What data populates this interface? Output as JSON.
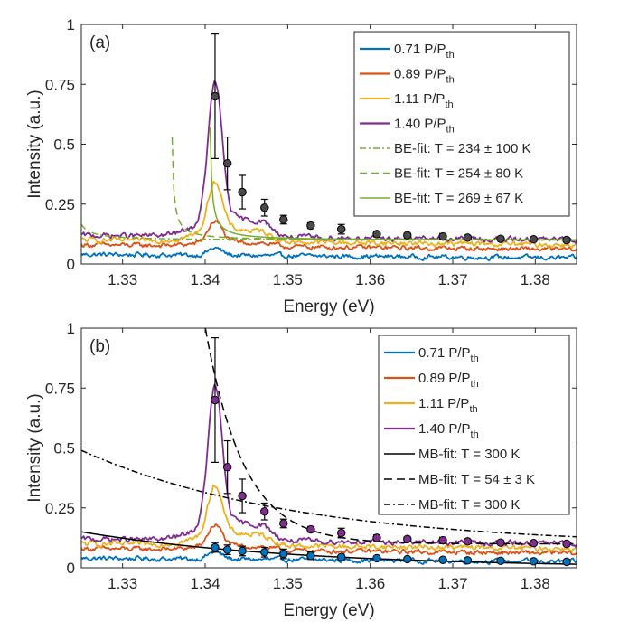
{
  "chart_data": [
    {
      "type": "line",
      "panel_label": "(a)",
      "xlabel": "Energy (eV)",
      "ylabel": "Intensity (a.u.)",
      "xlim": [
        1.325,
        1.385
      ],
      "ylim": [
        0,
        1
      ],
      "xticks": [
        1.33,
        1.34,
        1.35,
        1.36,
        1.37,
        1.38
      ],
      "xtick_labels": [
        "1.33",
        "1.34",
        "1.35",
        "1.36",
        "1.37",
        "1.38"
      ],
      "yticks": [
        0,
        0.25,
        0.5,
        0.75,
        1
      ],
      "ytick_labels": [
        "0",
        "0.25",
        "0.5",
        "0.75",
        "1"
      ],
      "legend_position": "top-right",
      "series": [
        {
          "name": "0.71 P/P",
          "sub": "th",
          "kind": "spectrum",
          "color": "#0072BD",
          "base": 0.04,
          "tail": 0.025,
          "peak": 0.03,
          "bump": 0.0,
          "noise": 0.008
        },
        {
          "name": "0.89 P/P",
          "sub": "th",
          "kind": "spectrum",
          "color": "#D95319",
          "base": 0.08,
          "tail": 0.06,
          "peak": 0.09,
          "bump": 0.02,
          "noise": 0.008
        },
        {
          "name": "1.11 P/P",
          "sub": "th",
          "kind": "spectrum",
          "color": "#EDB120",
          "base": 0.1,
          "tail": 0.08,
          "peak": 0.21,
          "bump": 0.06,
          "noise": 0.009
        },
        {
          "name": "1.40 P/P",
          "sub": "th",
          "kind": "spectrum",
          "color": "#7E2F8E",
          "base": 0.12,
          "tail": 0.1,
          "peak": 0.58,
          "bump": 0.09,
          "noise": 0.009
        },
        {
          "name": "BE-fit: T = 234 ± 100 K",
          "kind": "fit",
          "model": "BE",
          "color": "#77AC30",
          "dash": "7 3 2 3",
          "E0": 1.3238,
          "A": 0.0042,
          "kT": 0.0195,
          "C": 0.1
        },
        {
          "name": "BE-fit: T = 254 ± 80 K",
          "kind": "fit",
          "model": "BE",
          "color": "#77AC30",
          "dash": "8 5",
          "E0": 1.3358,
          "A": 0.0041,
          "kT": 0.021,
          "C": 0.1
        },
        {
          "name": "BE-fit: T = 269 ± 67 K",
          "kind": "fit",
          "model": "BE",
          "color": "#77AC30",
          "dash": "",
          "E0": 1.3404,
          "A": 0.0042,
          "kT": 0.0225,
          "C": 0.1
        }
      ],
      "points": {
        "x": [
          1.3412,
          1.3427,
          1.3445,
          1.3472,
          1.3495,
          1.3528,
          1.3565,
          1.3608,
          1.3645,
          1.3688,
          1.3718,
          1.3758,
          1.3798,
          1.3838
        ],
        "y": [
          0.7,
          0.42,
          0.3,
          0.235,
          0.185,
          0.16,
          0.145,
          0.125,
          0.12,
          0.115,
          0.11,
          0.105,
          0.103,
          0.1
        ],
        "err": [
          0.26,
          0.11,
          0.07,
          0.035,
          0.018,
          0.012,
          0.02,
          0.012,
          0.008,
          0.012,
          0.008,
          0.008,
          0.006,
          0.006
        ],
        "color": "#4a4a4a"
      }
    },
    {
      "type": "line",
      "panel_label": "(b)",
      "xlabel": "Energy (eV)",
      "ylabel": "Intensity (a.u.)",
      "xlim": [
        1.325,
        1.385
      ],
      "ylim": [
        0,
        1
      ],
      "xticks": [
        1.33,
        1.34,
        1.35,
        1.36,
        1.37,
        1.38
      ],
      "xtick_labels": [
        "1.33",
        "1.34",
        "1.35",
        "1.36",
        "1.37",
        "1.38"
      ],
      "yticks": [
        0,
        0.25,
        0.5,
        0.75,
        1
      ],
      "ytick_labels": [
        "0",
        "0.25",
        "0.5",
        "0.75",
        "1"
      ],
      "legend_position": "top-right",
      "series": [
        {
          "name": "0.71 P/P",
          "sub": "th",
          "kind": "spectrum",
          "color": "#0072BD",
          "base": 0.04,
          "tail": 0.025,
          "peak": 0.03,
          "bump": 0.0,
          "noise": 0.008
        },
        {
          "name": "0.89 P/P",
          "sub": "th",
          "kind": "spectrum",
          "color": "#D95319",
          "base": 0.08,
          "tail": 0.06,
          "peak": 0.09,
          "bump": 0.02,
          "noise": 0.008
        },
        {
          "name": "1.11 P/P",
          "sub": "th",
          "kind": "spectrum",
          "color": "#EDB120",
          "base": 0.1,
          "tail": 0.08,
          "peak": 0.21,
          "bump": 0.06,
          "noise": 0.009
        },
        {
          "name": "1.40 P/P",
          "sub": "th",
          "kind": "spectrum",
          "color": "#7E2F8E",
          "base": 0.12,
          "tail": 0.1,
          "peak": 0.58,
          "bump": 0.09,
          "noise": 0.009
        },
        {
          "name": "MB-fit: T = 300 K",
          "kind": "fit",
          "model": "MB",
          "color": "#000000",
          "dash": "",
          "A": 0.15,
          "kT": 0.02585,
          "x0": 1.325,
          "C": 0.0
        },
        {
          "name": "MB-fit: T = 54 ± 3 K",
          "kind": "fit",
          "model": "MB",
          "color": "#000000",
          "dash": "9 5",
          "A": 0.7,
          "kT": 0.00465,
          "x0": 1.3412,
          "C": 0.1
        },
        {
          "name": "MB-fit: T = 300 K",
          "kind": "fit",
          "model": "MB",
          "color": "#000000",
          "dash": "7 3 2 3",
          "A": 0.4,
          "kT": 0.02585,
          "x0": 1.325,
          "C": 0.09
        }
      ],
      "points": {
        "x": [
          1.3412,
          1.3427,
          1.3445,
          1.3472,
          1.3495,
          1.3528,
          1.3565,
          1.3608,
          1.3645,
          1.3688,
          1.3718,
          1.3758,
          1.3798,
          1.3838
        ],
        "y": [
          0.7,
          0.42,
          0.3,
          0.235,
          0.185,
          0.16,
          0.145,
          0.125,
          0.12,
          0.115,
          0.11,
          0.105,
          0.103,
          0.1
        ],
        "err": [
          0.26,
          0.11,
          0.07,
          0.035,
          0.018,
          0.012,
          0.02,
          0.012,
          0.008,
          0.012,
          0.008,
          0.008,
          0.006,
          0.006
        ],
        "color": "#7E2F8E"
      },
      "points2": {
        "x": [
          1.3412,
          1.3427,
          1.3445,
          1.3472,
          1.3495,
          1.3528,
          1.3565,
          1.3608,
          1.3645,
          1.3688,
          1.3718,
          1.3758,
          1.3798,
          1.3838
        ],
        "y": [
          0.085,
          0.075,
          0.07,
          0.065,
          0.058,
          0.05,
          0.045,
          0.04,
          0.036,
          0.033,
          0.031,
          0.029,
          0.027,
          0.025
        ],
        "err": [
          0.02,
          0.02,
          0.02,
          0.02,
          0.02,
          0.015,
          0.008,
          0.006,
          0.005,
          0.005,
          0.004,
          0.004,
          0.004,
          0.004
        ],
        "color": "#0072BD"
      }
    }
  ]
}
